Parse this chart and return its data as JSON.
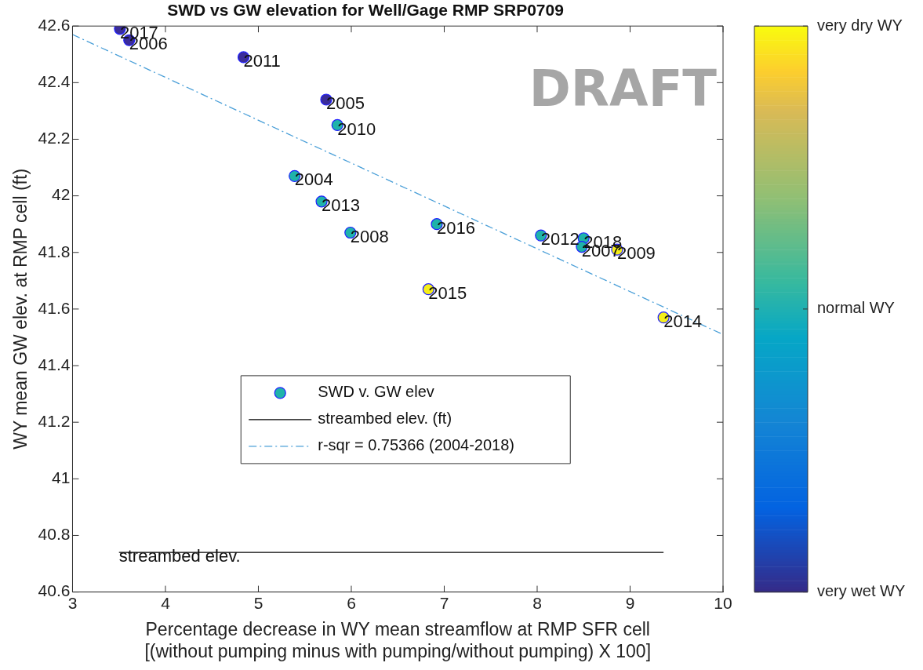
{
  "chart_data": {
    "type": "scatter",
    "title": "SWD vs GW elevation for Well/Gage RMP SRP0709",
    "xlabel": "Percentage decrease in WY mean streamflow at RMP SFR cell\n[(without pumping minus with pumping/without pumping) X 100]",
    "ylabel": "WY mean GW elev. at RMP cell (ft)",
    "xlim": [
      3,
      10
    ],
    "xticks": [
      3,
      4,
      5,
      6,
      7,
      8,
      9,
      10
    ],
    "ylim": [
      40.6,
      42.6
    ],
    "yticks": [
      40.6,
      40.8,
      41,
      41.2,
      41.4,
      41.6,
      41.8,
      42,
      42.2,
      42.4,
      42.6
    ],
    "grid": false,
    "legend": "center",
    "marker": "circle",
    "clim": [
      0,
      1
    ],
    "cticks": [
      {
        "value": 0,
        "label": "very wet WY"
      },
      {
        "value": 0.5,
        "label": "normal WY"
      },
      {
        "value": 1,
        "label": "very dry WY"
      }
    ],
    "series": [
      {
        "name": "SWD v. GW elev",
        "x": [
          3.51,
          3.61,
          4.84,
          5.73,
          5.85,
          5.39,
          5.68,
          5.99,
          6.92,
          6.83,
          8.04,
          8.5,
          8.48,
          8.86,
          9.36
        ],
        "values": [
          42.59,
          42.55,
          42.49,
          42.34,
          42.25,
          42.07,
          41.98,
          41.87,
          41.9,
          41.67,
          41.86,
          41.85,
          41.82,
          41.81,
          41.57
        ],
        "colors": [
          "#3a2c9a",
          "#3a2c9a",
          "#3a2c9a",
          "#3a2c9a",
          "#1fb3aa",
          "#1fb3aa",
          "#1fb3aa",
          "#1fb3aa",
          "#1fb3aa",
          "#f5ee1a",
          "#1fb3aa",
          "#1fb3aa",
          "#1fb3aa",
          "#f5ee1a",
          "#f5ee1a"
        ]
      },
      {
        "name": "streambed elev. (ft)",
        "type": "line",
        "color": "#000000",
        "line_style": "solid",
        "marker": "none",
        "x": [
          3.5,
          9.36
        ],
        "values": [
          40.74,
          40.74
        ]
      },
      {
        "name": "r-sqr = 0.75366 (2004-2018)",
        "type": "line",
        "color": "#4a9fd8",
        "line_style": "dashdot",
        "marker": "none",
        "x": [
          3,
          10
        ],
        "values": [
          42.57,
          41.51
        ]
      }
    ],
    "annotations": [
      {
        "text": "2017",
        "x": 3.51,
        "y": 42.59
      },
      {
        "text": "2006",
        "x": 3.61,
        "y": 42.55
      },
      {
        "text": "2011",
        "x": 4.84,
        "y": 42.49
      },
      {
        "text": "2005",
        "x": 5.73,
        "y": 42.34
      },
      {
        "text": "2010",
        "x": 5.85,
        "y": 42.25
      },
      {
        "text": "2004",
        "x": 5.39,
        "y": 42.07
      },
      {
        "text": "2013",
        "x": 5.68,
        "y": 41.98
      },
      {
        "text": "2008",
        "x": 5.99,
        "y": 41.87
      },
      {
        "text": "2016",
        "x": 6.92,
        "y": 41.9
      },
      {
        "text": "2015",
        "x": 6.83,
        "y": 41.67
      },
      {
        "text": "2012",
        "x": 8.04,
        "y": 41.86
      },
      {
        "text": "2018",
        "x": 8.5,
        "y": 41.85
      },
      {
        "text": "2007",
        "x": 8.48,
        "y": 41.82
      },
      {
        "text": "2009",
        "x": 8.86,
        "y": 41.81
      },
      {
        "text": "2014",
        "x": 9.36,
        "y": 41.57
      },
      {
        "text": "streambed elev.",
        "x": 3.5,
        "y": 40.74
      },
      "DRAFT"
    ]
  }
}
